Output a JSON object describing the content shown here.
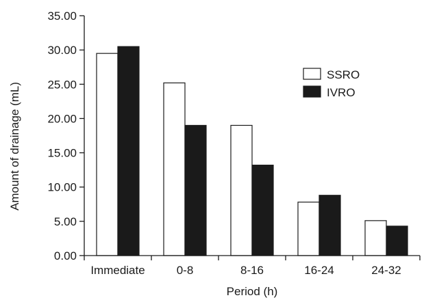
{
  "chart_data": {
    "type": "bar",
    "title": "",
    "xlabel": "Period (h)",
    "ylabel": "Amount of drainage (mL)",
    "ylim": [
      0,
      35
    ],
    "yticks": [
      "0.00",
      "5.00",
      "10.00",
      "15.00",
      "20.00",
      "25.00",
      "30.00",
      "35.00"
    ],
    "categories": [
      "Immediate",
      "0-8",
      "8-16",
      "16-24",
      "24-32"
    ],
    "series": [
      {
        "name": "SSRO",
        "values": [
          29.5,
          25.2,
          19.0,
          7.8,
          5.1
        ],
        "fill": "#ffffff",
        "stroke": "#1a1a1a"
      },
      {
        "name": "IVRO",
        "values": [
          30.5,
          19.0,
          13.2,
          8.8,
          4.3
        ],
        "fill": "#1a1a1a",
        "stroke": "#1a1a1a"
      }
    ],
    "legend_position": "top-right",
    "grid": false
  }
}
